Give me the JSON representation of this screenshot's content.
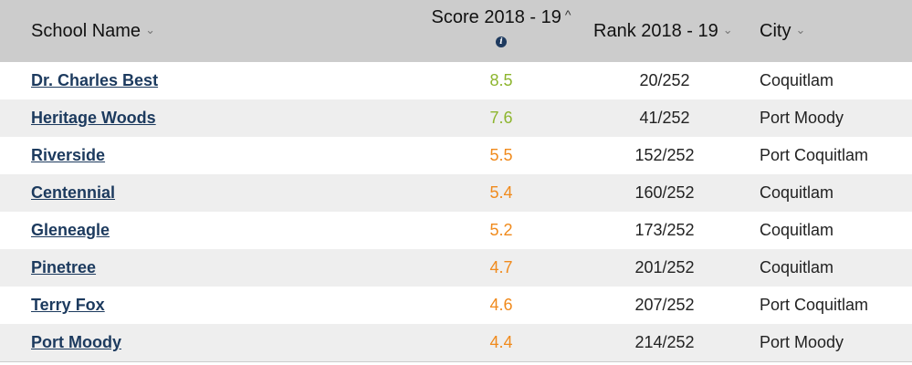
{
  "colors": {
    "header_bg": "#cccccc",
    "row_alt_bg": "#eeeeee",
    "link": "#1c3a5e",
    "score_high": "#8db52e",
    "score_mid": "#f08a1c",
    "info_icon_bg": "#1e3a5f"
  },
  "header": {
    "school_name": "School Name",
    "score": "Score 2018 - 19",
    "score_info_icon": "info-icon",
    "rank": "Rank 2018 - 19",
    "city": "City",
    "sort_down_glyph": "⌄",
    "sort_up_glyph": "^",
    "info_glyph": "i"
  },
  "rows": [
    {
      "name": "Dr. Charles Best",
      "score": "8.5",
      "score_color": "#8db52e",
      "rank": "20/252",
      "city": "Coquitlam"
    },
    {
      "name": "Heritage Woods",
      "score": "7.6",
      "score_color": "#8db52e",
      "rank": "41/252",
      "city": "Port Moody"
    },
    {
      "name": "Riverside",
      "score": "5.5",
      "score_color": "#f08a1c",
      "rank": "152/252",
      "city": "Port Coquitlam"
    },
    {
      "name": "Centennial",
      "score": "5.4",
      "score_color": "#f08a1c",
      "rank": "160/252",
      "city": "Coquitlam"
    },
    {
      "name": "Gleneagle",
      "score": "5.2",
      "score_color": "#f08a1c",
      "rank": "173/252",
      "city": "Coquitlam"
    },
    {
      "name": "Pinetree",
      "score": "4.7",
      "score_color": "#f08a1c",
      "rank": "201/252",
      "city": "Coquitlam"
    },
    {
      "name": "Terry Fox",
      "score": "4.6",
      "score_color": "#f08a1c",
      "rank": "207/252",
      "city": "Port Coquitlam"
    },
    {
      "name": "Port Moody",
      "score": "4.4",
      "score_color": "#f08a1c",
      "rank": "214/252",
      "city": "Port Moody"
    }
  ]
}
